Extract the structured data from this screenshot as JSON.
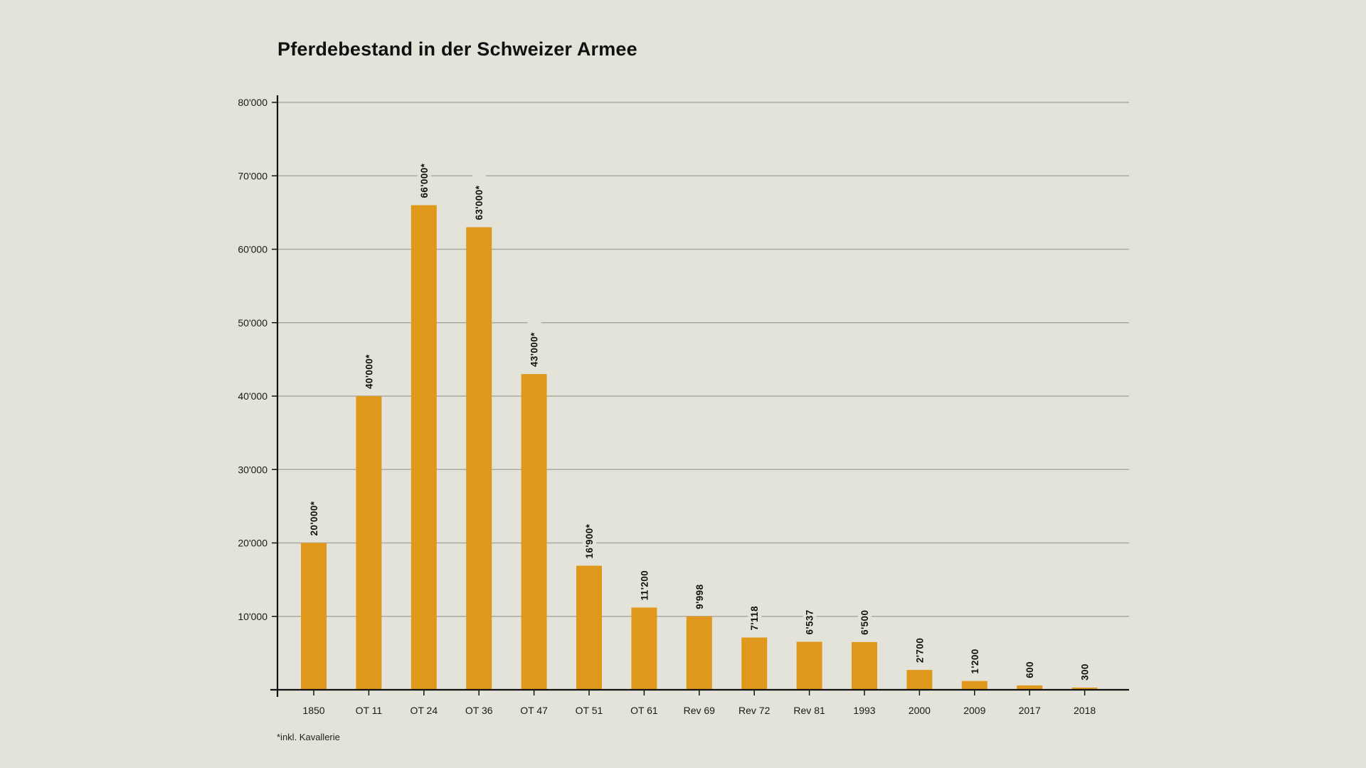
{
  "colors": {
    "background": "#e3e3d9",
    "bar": "#e0981c",
    "gridline": "#aaaa9e",
    "axis": "#111111"
  },
  "chart_data": {
    "type": "bar",
    "title": "Pferdebestand in der Schweizer Armee",
    "xlabel": "",
    "ylabel": "",
    "ylim": [
      0,
      80000
    ],
    "grid": true,
    "yticks": [
      10000,
      20000,
      30000,
      40000,
      50000,
      60000,
      70000,
      80000
    ],
    "ytick_labels": [
      "10'000",
      "20'000",
      "30'000",
      "40'000",
      "50'000",
      "60'000",
      "70'000",
      "80'000"
    ],
    "categories": [
      "1850",
      "OT 11",
      "OT 24",
      "OT 36",
      "OT 47",
      "OT 51",
      "OT 61",
      "Rev 69",
      "Rev 72",
      "Rev 81",
      "1993",
      "2000",
      "2009",
      "2017",
      "2018"
    ],
    "values": [
      20000,
      40000,
      66000,
      63000,
      43000,
      16900,
      11200,
      9998,
      7118,
      6537,
      6500,
      2700,
      1200,
      600,
      300
    ],
    "data_labels": [
      "20'000*",
      "40'000*",
      "66'000*",
      "63'000*",
      "43'000*",
      "16'900*",
      "11'200",
      "9'998",
      "7'118",
      "6'537",
      "6'500",
      "2'700",
      "1'200",
      "600",
      "300"
    ],
    "footnote": "*inkl. Kavallerie"
  }
}
